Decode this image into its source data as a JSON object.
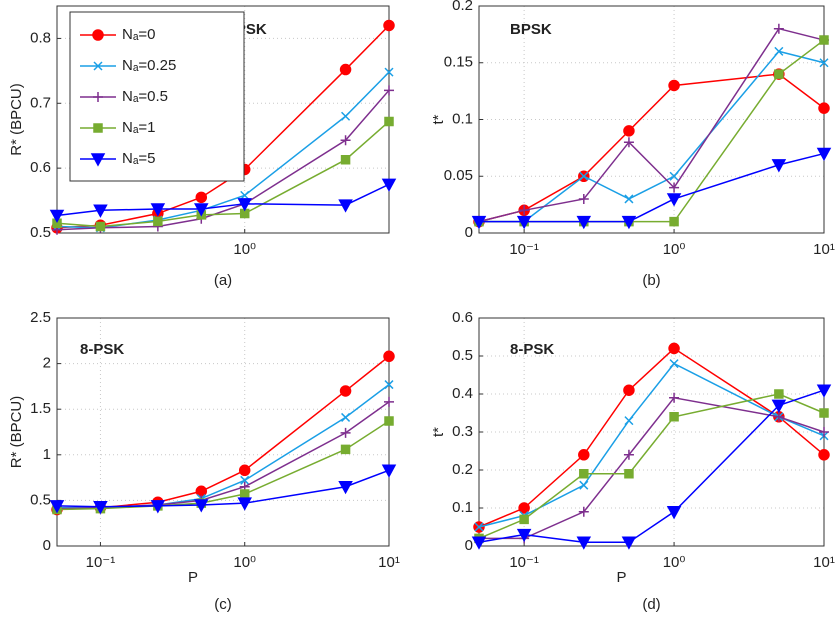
{
  "chart_data": [
    {
      "type": "line",
      "caption": "(a)",
      "annotation": "BPSK",
      "ylabel": "R* (BPCU)",
      "log_x": true,
      "grid": true,
      "legend": "upper left",
      "x": [
        0.05,
        0.1,
        0.25,
        0.5,
        1,
        5,
        10
      ],
      "xlim": [
        0.05,
        10
      ],
      "xticks": [
        {
          "value": 1,
          "label": "10⁰"
        }
      ],
      "ylim": [
        0.5,
        0.85
      ],
      "yticks": [
        0.5,
        0.6,
        0.7,
        0.8
      ],
      "series": [
        {
          "name": "Nₐ=0",
          "color": "#ff0000",
          "marker": "o",
          "values": [
            0.508,
            0.512,
            0.53,
            0.555,
            0.598,
            0.752,
            0.82
          ]
        },
        {
          "name": "Nₐ=0.25",
          "color": "#1a9fe6",
          "marker": "x",
          "values": [
            0.51,
            0.508,
            0.52,
            0.535,
            0.558,
            0.68,
            0.748
          ]
        },
        {
          "name": "Nₐ=0.5",
          "color": "#7e2f8e",
          "marker": "+",
          "values": [
            0.505,
            0.508,
            0.51,
            0.522,
            0.545,
            0.643,
            0.72
          ]
        },
        {
          "name": "Nₐ=1",
          "color": "#77ac30",
          "marker": "s",
          "values": [
            0.515,
            0.51,
            0.518,
            0.528,
            0.53,
            0.613,
            0.672
          ]
        },
        {
          "name": "Nₐ=5",
          "color": "#0000ff",
          "marker": "v",
          "values": [
            0.527,
            0.535,
            0.537,
            0.537,
            0.545,
            0.543,
            0.575
          ]
        }
      ]
    },
    {
      "type": "line",
      "caption": "(b)",
      "annotation": "BPSK",
      "ylabel": "t*",
      "log_x": true,
      "grid": true,
      "x": [
        0.05,
        0.1,
        0.25,
        0.5,
        1,
        5,
        10
      ],
      "xlim": [
        0.05,
        10
      ],
      "xticks": [
        {
          "value": 0.1,
          "label": "10⁻¹"
        },
        {
          "value": 1,
          "label": "10⁰"
        },
        {
          "value": 10,
          "label": "10¹"
        }
      ],
      "ylim": [
        0,
        0.2
      ],
      "yticks": [
        0,
        0.05,
        0.1,
        0.15,
        0.2
      ],
      "series": [
        {
          "color": "#ff0000",
          "marker": "o",
          "values": [
            0.01,
            0.02,
            0.05,
            0.09,
            0.13,
            0.14,
            0.11
          ]
        },
        {
          "color": "#1a9fe6",
          "marker": "x",
          "values": [
            0.01,
            0.01,
            0.05,
            0.03,
            0.05,
            0.16,
            0.15
          ]
        },
        {
          "color": "#7e2f8e",
          "marker": "+",
          "values": [
            0.01,
            0.02,
            0.03,
            0.08,
            0.04,
            0.18,
            0.17
          ]
        },
        {
          "color": "#77ac30",
          "marker": "s",
          "values": [
            0.01,
            0.01,
            0.01,
            0.01,
            0.01,
            0.14,
            0.17
          ]
        },
        {
          "color": "#0000ff",
          "marker": "v",
          "values": [
            0.01,
            0.01,
            0.01,
            0.01,
            0.03,
            0.06,
            0.07
          ]
        }
      ]
    },
    {
      "type": "line",
      "caption": "(c)",
      "annotation": "8-PSK",
      "ylabel": "R* (BPCU)",
      "xlabel": "P",
      "log_x": true,
      "grid": true,
      "x": [
        0.05,
        0.1,
        0.25,
        0.5,
        1,
        5,
        10
      ],
      "xlim": [
        0.05,
        10
      ],
      "xticks": [
        {
          "value": 0.1,
          "label": "10⁻¹"
        },
        {
          "value": 1,
          "label": "10⁰"
        },
        {
          "value": 10,
          "label": "10¹"
        }
      ],
      "ylim": [
        0,
        2.5
      ],
      "yticks": [
        0,
        0.5,
        1,
        1.5,
        2,
        2.5
      ],
      "series": [
        {
          "color": "#ff0000",
          "marker": "o",
          "values": [
            0.4,
            0.42,
            0.48,
            0.6,
            0.83,
            1.7,
            2.08
          ]
        },
        {
          "color": "#1a9fe6",
          "marker": "x",
          "values": [
            0.42,
            0.42,
            0.45,
            0.52,
            0.72,
            1.41,
            1.77
          ]
        },
        {
          "color": "#7e2f8e",
          "marker": "+",
          "values": [
            0.41,
            0.42,
            0.45,
            0.5,
            0.65,
            1.24,
            1.58
          ]
        },
        {
          "color": "#77ac30",
          "marker": "s",
          "values": [
            0.4,
            0.41,
            0.44,
            0.47,
            0.57,
            1.06,
            1.37
          ]
        },
        {
          "color": "#0000ff",
          "marker": "v",
          "values": [
            0.44,
            0.43,
            0.44,
            0.45,
            0.47,
            0.65,
            0.83
          ]
        }
      ]
    },
    {
      "type": "line",
      "caption": "(d)",
      "annotation": "8-PSK",
      "ylabel": "t*",
      "xlabel": "P",
      "log_x": true,
      "grid": true,
      "x": [
        0.05,
        0.1,
        0.25,
        0.5,
        1,
        5,
        10
      ],
      "xlim": [
        0.05,
        10
      ],
      "xticks": [
        {
          "value": 0.1,
          "label": "10⁻¹"
        },
        {
          "value": 1,
          "label": "10⁰"
        },
        {
          "value": 10,
          "label": "10¹"
        }
      ],
      "ylim": [
        0,
        0.6
      ],
      "yticks": [
        0,
        0.1,
        0.2,
        0.3,
        0.4,
        0.5,
        0.6
      ],
      "series": [
        {
          "color": "#ff0000",
          "marker": "o",
          "values": [
            0.05,
            0.1,
            0.24,
            0.41,
            0.52,
            0.34,
            0.24
          ]
        },
        {
          "color": "#1a9fe6",
          "marker": "x",
          "values": [
            0.05,
            0.08,
            0.16,
            0.33,
            0.48,
            0.34,
            0.29
          ]
        },
        {
          "color": "#7e2f8e",
          "marker": "+",
          "values": [
            0.02,
            0.02,
            0.09,
            0.24,
            0.39,
            0.34,
            0.3
          ]
        },
        {
          "color": "#77ac30",
          "marker": "s",
          "values": [
            0.02,
            0.07,
            0.19,
            0.19,
            0.34,
            0.4,
            0.35
          ]
        },
        {
          "color": "#0000ff",
          "marker": "v",
          "values": [
            0.01,
            0.03,
            0.01,
            0.01,
            0.09,
            0.37,
            0.41
          ]
        }
      ]
    }
  ]
}
